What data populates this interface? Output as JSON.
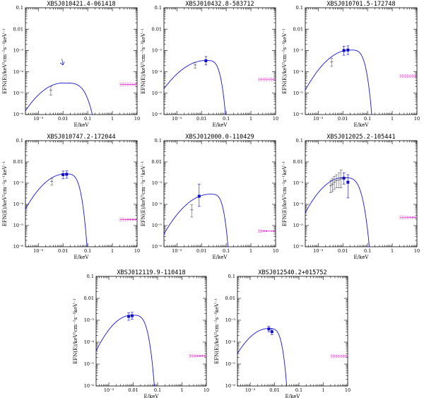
{
  "figure": {
    "description_label": "SED panels"
  },
  "chart_data": [
    {
      "type": "line",
      "title": "XBSJ010421.4-061418",
      "xlabel": "E/keV",
      "ylabel": "EFN(E)/keV²cm⁻²s⁻¹keV⁻¹",
      "xlim": [
        0.0003,
        10
      ],
      "ylim": [
        1e-06,
        0.1
      ],
      "xticks": [
        "10⁻³",
        "0.01",
        "0.1",
        "1",
        "10"
      ],
      "yticks": [
        "0.1",
        "0.01",
        "10⁻³",
        "10⁻⁴",
        "10⁻⁵",
        "10⁻⁶"
      ],
      "model": {
        "peak_energy": 0.01,
        "peak_flux": 3e-05,
        "cutoff_energy": 0.16,
        "low_energy_flux": 1.5e-06
      },
      "optical_points": [
        {
          "x": 0.0032,
          "y": 1.4e-05,
          "yerr_lo": 6e-06,
          "yerr_hi": 7e-06
        }
      ],
      "uv_points": [],
      "upper_limits": [
        {
          "x": 0.009,
          "y": 0.0004
        }
      ],
      "xray_band": {
        "x_range": [
          2,
          10
        ],
        "flux_range": [
          2.2e-05,
          3e-05
        ]
      }
    },
    {
      "type": "line",
      "title": "XBSJ010432.8-583712",
      "xlabel": "E/keV",
      "ylabel": "EFN(E)/keV²cm⁻²s⁻¹keV⁻¹",
      "xlim": [
        0.0003,
        10
      ],
      "ylim": [
        1e-06,
        0.1
      ],
      "xticks": [
        "10⁻³",
        "0.01",
        "0.1",
        "1",
        "10"
      ],
      "yticks": [
        "0.1",
        "0.01",
        "10⁻³",
        "10⁻⁴",
        "10⁻⁵",
        "10⁻⁶"
      ],
      "model": {
        "peak_energy": 0.015,
        "peak_flux": 0.00034,
        "cutoff_energy": 0.095,
        "low_energy_flux": 1.6e-05
      },
      "optical_points": [
        {
          "x": 0.0055,
          "y": 0.00021,
          "yerr_lo": 6e-05,
          "yerr_hi": 7e-05
        }
      ],
      "uv_points": [
        {
          "x": 0.015,
          "y": 0.00033,
          "yerr_lo": 0.00012,
          "yerr_hi": 0.00019
        }
      ],
      "upper_limits": [],
      "xray_band": {
        "x_range": [
          2,
          10
        ],
        "flux_range": [
          4.2e-05,
          4.7e-05
        ]
      }
    },
    {
      "type": "line",
      "title": "XBSJ010701.5-172748",
      "xlabel": "E/keV",
      "ylabel": "EFN(E)/keV²cm⁻²s⁻¹keV⁻¹",
      "xlim": [
        0.0003,
        10
      ],
      "ylim": [
        1e-06,
        0.1
      ],
      "xticks": [
        "10⁻³",
        "0.01",
        "0.1",
        "1",
        "10"
      ],
      "yticks": [
        "0.1",
        "0.01",
        "10⁻³",
        "10⁻⁴",
        "10⁻⁵",
        "10⁻⁶"
      ],
      "model": {
        "peak_energy": 0.019,
        "peak_flux": 0.00105,
        "cutoff_energy": 0.15,
        "low_energy_flux": 1.4e-05
      },
      "optical_points": [
        {
          "x": 0.0035,
          "y": 0.00029,
          "yerr_lo": 0.00011,
          "yerr_hi": 0.00015
        }
      ],
      "uv_points": [
        {
          "x": 0.011,
          "y": 0.001,
          "yerr_lo": 0.0004,
          "yerr_hi": 0.0006
        },
        {
          "x": 0.016,
          "y": 0.00105,
          "yerr_lo": 0.0004,
          "yerr_hi": 0.0006
        }
      ],
      "upper_limits": [],
      "xray_band": {
        "x_range": [
          2,
          10
        ],
        "flux_range": [
          6e-05,
          6.5e-05
        ]
      }
    },
    {
      "type": "line",
      "title": "XBSJ010747.2-172044",
      "xlabel": "E/keV",
      "ylabel": "EFN(E)/keV²cm⁻²s⁻¹keV⁻¹",
      "xlim": [
        0.0003,
        10
      ],
      "ylim": [
        1e-06,
        0.1
      ],
      "xticks": [
        "10⁻³",
        "0.01",
        "0.1",
        "1",
        "10"
      ],
      "yticks": [
        "0.1",
        "0.01",
        "10⁻³",
        "10⁻⁴",
        "10⁻⁵",
        "10⁻⁶"
      ],
      "model": {
        "peak_energy": 0.012,
        "peak_flux": 0.0027,
        "cutoff_energy": 0.095,
        "low_energy_flux": 6e-05
      },
      "optical_points": [
        {
          "x": 0.0035,
          "y": 0.0012,
          "yerr_lo": 0.0004,
          "yerr_hi": 0.0005
        }
      ],
      "uv_points": [
        {
          "x": 0.01,
          "y": 0.0025,
          "yerr_lo": 0.0009,
          "yerr_hi": 0.0012
        },
        {
          "x": 0.014,
          "y": 0.0026,
          "yerr_lo": 0.0009,
          "yerr_hi": 0.0012
        }
      ],
      "upper_limits": [],
      "xray_band": {
        "x_range": [
          2,
          10
        ],
        "flux_range": [
          1.3e-05,
          2.8e-05
        ]
      }
    },
    {
      "type": "line",
      "title": "XBSJ012000.0-110429",
      "xlabel": "E/keV",
      "ylabel": "EFN(E)/keV²cm⁻²s⁻¹keV⁻¹",
      "xlim": [
        0.0003,
        10
      ],
      "ylim": [
        1e-06,
        0.1
      ],
      "xticks": [
        "10⁻³",
        "0.01",
        "0.1",
        "1",
        "10"
      ],
      "yticks": [
        "0.1",
        "0.01",
        "10⁻³",
        "10⁻⁴",
        "10⁻⁵",
        "10⁻⁶"
      ],
      "model": {
        "peak_energy": 0.022,
        "peak_flux": 0.0003,
        "cutoff_energy": 0.12,
        "low_energy_flux": 4e-06
      },
      "optical_points": [
        {
          "x": 0.004,
          "y": 5.5e-05,
          "yerr_lo": 3e-05,
          "yerr_hi": 4e-05
        }
      ],
      "uv_points": [
        {
          "x": 0.008,
          "y": 0.00024,
          "yerr_lo": 0.00016,
          "yerr_hi": 0.00066
        }
      ],
      "upper_limits": [],
      "xray_band": {
        "x_range": [
          2,
          10
        ],
        "flux_range": [
          2.5e-06,
          1.2e-05
        ]
      }
    },
    {
      "type": "line",
      "title": "XBSJ012025.2-105441",
      "xlabel": "E/keV",
      "ylabel": "EFN(E)/keV²cm⁻²s⁻¹keV⁻¹",
      "xlim": [
        0.0003,
        10
      ],
      "ylim": [
        1e-06,
        0.1
      ],
      "xticks": [
        "10⁻³",
        "0.01",
        "0.1",
        "1",
        "10"
      ],
      "yticks": [
        "0.1",
        "0.01",
        "10⁻³",
        "10⁻⁴",
        "10⁻⁵",
        "10⁻⁶"
      ],
      "model": {
        "peak_energy": 0.01,
        "peak_flux": 0.0018,
        "cutoff_energy": 0.12,
        "low_energy_flux": 4e-05
      },
      "optical_points": [
        {
          "x": 0.0032,
          "y": 0.00075,
          "yerr_lo": 0.0004,
          "yerr_hi": 0.0006
        },
        {
          "x": 0.0038,
          "y": 0.0009,
          "yerr_lo": 0.0005,
          "yerr_hi": 0.0008
        },
        {
          "x": 0.0045,
          "y": 0.0011,
          "yerr_lo": 0.0006,
          "yerr_hi": 0.001
        },
        {
          "x": 0.0055,
          "y": 0.0013,
          "yerr_lo": 0.0007,
          "yerr_hi": 0.0012
        },
        {
          "x": 0.007,
          "y": 0.0014,
          "yerr_lo": 0.0008,
          "yerr_hi": 0.0016
        },
        {
          "x": 0.0085,
          "y": 0.0016,
          "yerr_lo": 0.001,
          "yerr_hi": 0.0025
        }
      ],
      "uv_points": [
        {
          "x": 0.011,
          "y": 0.0017,
          "yerr_lo": 0.0008,
          "yerr_hi": 0.0014
        },
        {
          "x": 0.016,
          "y": 0.0011,
          "yerr_lo": 0.0009,
          "yerr_hi": 0.0014
        }
      ],
      "upper_limits": [],
      "xray_band": {
        "x_range": [
          2,
          10
        ],
        "flux_range": [
          1.8e-05,
          3.2e-05
        ]
      }
    },
    {
      "type": "line",
      "title": "XBSJ012119.9-110418",
      "xlabel": "E/keV",
      "ylabel": "EFN(E)/keV²cm⁻²s⁻¹keV⁻¹",
      "xlim": [
        0.0003,
        10
      ],
      "ylim": [
        1e-06,
        0.1
      ],
      "xticks": [
        "10⁻³",
        "0.01",
        "0.1",
        "1",
        "10"
      ],
      "yticks": [
        "0.1",
        "0.01",
        "10⁻³",
        "10⁻⁴",
        "10⁻⁵",
        "10⁻⁶"
      ],
      "model": {
        "peak_energy": 0.0085,
        "peak_flux": 0.0017,
        "cutoff_energy": 0.075,
        "low_energy_flux": 4e-05
      },
      "optical_points": [],
      "uv_points": [
        {
          "x": 0.0065,
          "y": 0.0015,
          "yerr_lo": 0.0005,
          "yerr_hi": 0.0007
        },
        {
          "x": 0.009,
          "y": 0.0016,
          "yerr_lo": 0.0005,
          "yerr_hi": 0.0007
        }
      ],
      "upper_limits": [],
      "xray_band": {
        "x_range": [
          2,
          10
        ],
        "flux_range": [
          1.6e-05,
          3.5e-05
        ]
      }
    },
    {
      "type": "line",
      "title": "XBSJ012540.2+015752",
      "xlabel": "E/keV",
      "ylabel": "EFN(E)/keV²cm⁻²s⁻¹keV⁻¹",
      "xlim": [
        0.0003,
        10
      ],
      "ylim": [
        1e-06,
        0.1
      ],
      "xticks": [
        "10⁻³",
        "0.01",
        "0.1",
        "1",
        "10"
      ],
      "yticks": [
        "0.1",
        "0.01",
        "10⁻³",
        "10⁻⁴",
        "10⁻⁵",
        "10⁻⁶"
      ],
      "model": {
        "peak_energy": 0.0055,
        "peak_flux": 0.00042,
        "cutoff_energy": 0.032,
        "low_energy_flux": 3e-05
      },
      "optical_points": [],
      "uv_points": [
        {
          "x": 0.0058,
          "y": 0.0004,
          "yerr_lo": 0.0001,
          "yerr_hi": 0.00013
        },
        {
          "x": 0.0078,
          "y": 0.0003,
          "yerr_lo": 8e-05,
          "yerr_hi": 0.0001
        }
      ],
      "upper_limits": [],
      "xray_band": {
        "x_range": [
          2,
          10
        ],
        "flux_range": [
          2e-05,
          2.6e-05
        ]
      }
    }
  ],
  "colors": {
    "model": "#1515d6",
    "uv_points": "#0d0dc8",
    "optical_points": "#555566",
    "xray": "#e020c8",
    "axis": "#000000"
  }
}
